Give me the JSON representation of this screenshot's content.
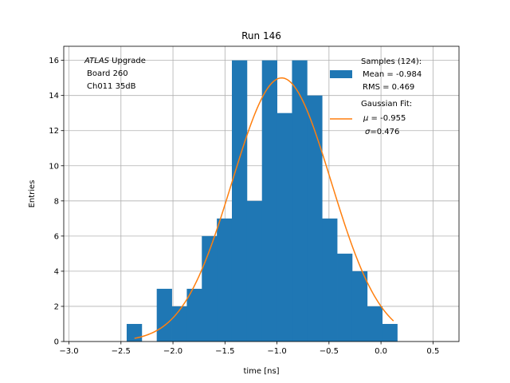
{
  "chart_data": {
    "type": "bar",
    "title": "Run 146",
    "xlabel": "time [ns]",
    "ylabel": "Entries",
    "xlim": [
      -3.05,
      0.75
    ],
    "ylim": [
      0,
      16.8
    ],
    "grid": true,
    "x_ticks": [
      -3.0,
      -2.5,
      -2.0,
      -1.5,
      -1.0,
      -0.5,
      0.0,
      0.5
    ],
    "x_tick_labels": [
      "−3.0",
      "−2.5",
      "−2.0",
      "−1.5",
      "−1.0",
      "−0.5",
      "0.0",
      "0.5"
    ],
    "y_ticks": [
      0,
      2,
      4,
      6,
      8,
      10,
      12,
      14,
      16
    ],
    "y_tick_labels": [
      "0",
      "2",
      "4",
      "6",
      "8",
      "10",
      "12",
      "14",
      "16"
    ],
    "annotation": {
      "italic": "ATLAS",
      "line1_rest": " Upgrade",
      "line2": "Board 260",
      "line3": "Ch011 35dB"
    },
    "histogram": {
      "name": "Samples (124):",
      "color": "#1f77b4",
      "bin_start": -2.445,
      "bin_width": 0.1445,
      "counts": [
        1,
        0,
        3,
        2,
        3,
        6,
        7,
        16,
        8,
        16,
        13,
        16,
        14,
        7,
        5,
        4,
        2,
        1
      ]
    },
    "fit": {
      "name": "Gaussian Fit:",
      "color": "#ff7f0e",
      "mu": -0.955,
      "sigma": 0.476,
      "amplitude": 15.0,
      "x_min": -2.37,
      "x_max": 0.12
    },
    "legend": {
      "location": "top-right",
      "samples_title": "Samples (124):",
      "samples_mean": " Mean = -0.984",
      "samples_rms": " RMS = 0.469",
      "fit_title": "Gaussian Fit:",
      "fit_mu_symbol": "μ",
      "fit_mu_value": " = -0.955",
      "fit_sigma_symbol": "σ",
      "fit_sigma_value": "=0.476"
    }
  }
}
